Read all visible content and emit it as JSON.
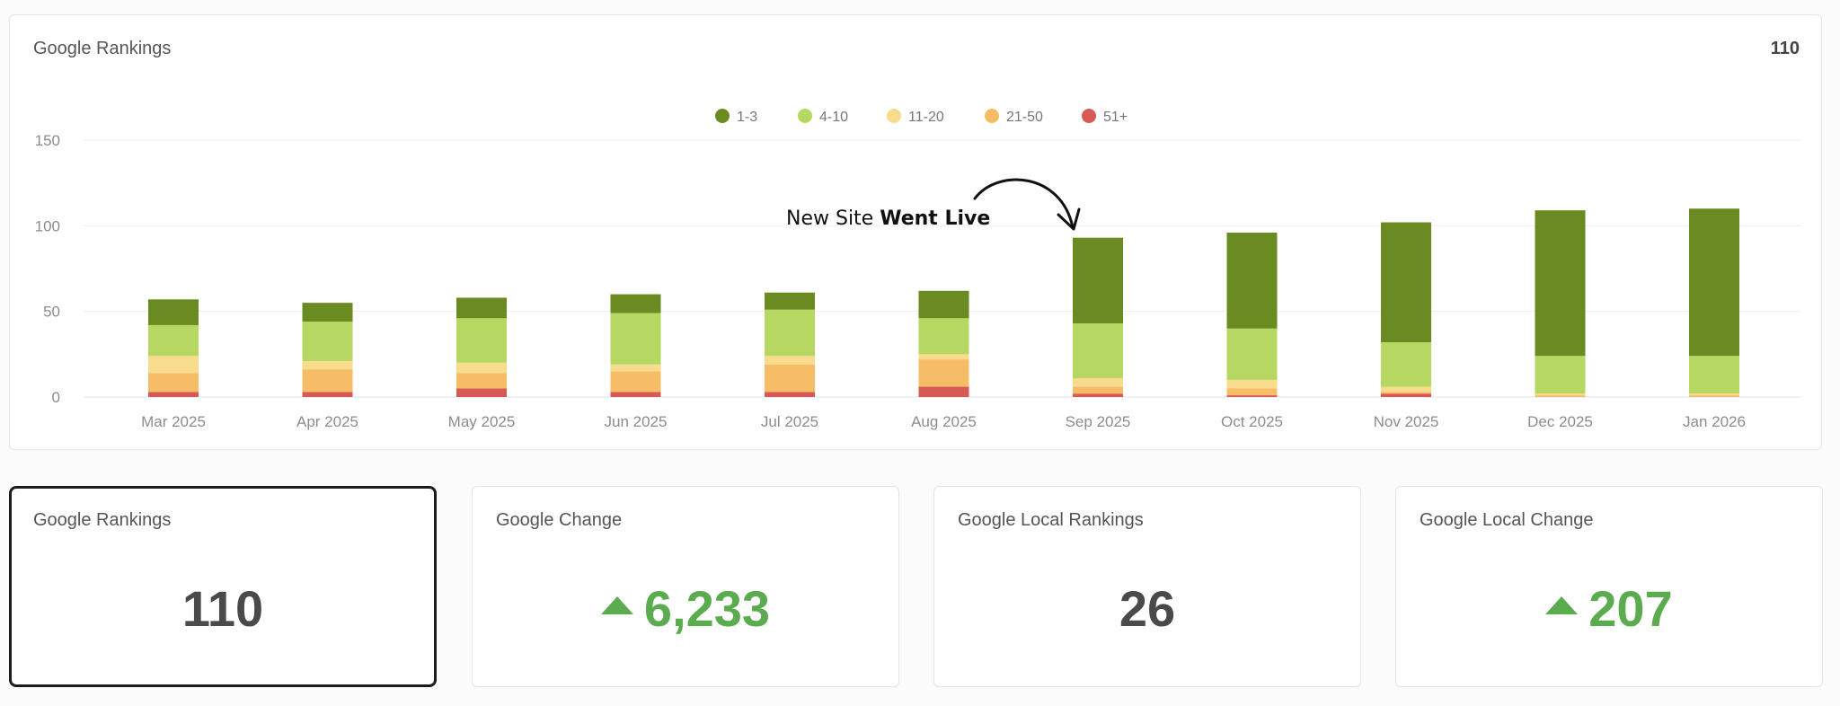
{
  "panel": {
    "title": "Google Rankings",
    "total": "110"
  },
  "annotation": {
    "text_regular": "New Site ",
    "text_bold": "Went Live",
    "target_category": "Sep 2025"
  },
  "colors": {
    "1-3": "#6a8a22",
    "4-10": "#b6d862",
    "11-20": "#f6dc8c",
    "21-50": "#f7bd66",
    "51+": "#d85a55",
    "positive": "#5aac4e",
    "grid": "#efefef",
    "tick": "#8c8c8c"
  },
  "chart_data": {
    "type": "bar",
    "stacked": true,
    "title": "Google Rankings",
    "categories": [
      "Mar 2025",
      "Apr 2025",
      "May 2025",
      "Jun 2025",
      "Jul 2025",
      "Aug 2025",
      "Sep 2025",
      "Oct 2025",
      "Nov 2025",
      "Dec 2025",
      "Jan 2026"
    ],
    "series": [
      {
        "name": "51+",
        "values": [
          3,
          3,
          5,
          3,
          3,
          6,
          2,
          1,
          2,
          0,
          0
        ]
      },
      {
        "name": "21-50",
        "values": [
          11,
          13,
          9,
          12,
          16,
          16,
          4,
          4,
          1,
          1,
          1
        ]
      },
      {
        "name": "11-20",
        "values": [
          10,
          5,
          6,
          4,
          5,
          3,
          5,
          5,
          3,
          1,
          1
        ]
      },
      {
        "name": "4-10",
        "values": [
          18,
          23,
          26,
          30,
          27,
          21,
          32,
          30,
          26,
          22,
          22
        ]
      },
      {
        "name": "1-3",
        "values": [
          15,
          11,
          12,
          11,
          10,
          16,
          50,
          56,
          70,
          85,
          86
        ]
      }
    ],
    "legend_order": [
      "1-3",
      "4-10",
      "11-20",
      "21-50",
      "51+"
    ],
    "legend_position": "top-center",
    "ylim": [
      0,
      150
    ],
    "yticks": [
      0,
      50,
      100,
      150
    ],
    "grid": true,
    "xlabel": "",
    "ylabel": ""
  },
  "cards": [
    {
      "title": "Google Rankings",
      "value": "110",
      "trend": "none",
      "selected": true
    },
    {
      "title": "Google Change",
      "value": "6,233",
      "trend": "up",
      "selected": false
    },
    {
      "title": "Google Local Rankings",
      "value": "26",
      "trend": "none",
      "selected": false
    },
    {
      "title": "Google Local Change",
      "value": "207",
      "trend": "up",
      "selected": false
    }
  ]
}
